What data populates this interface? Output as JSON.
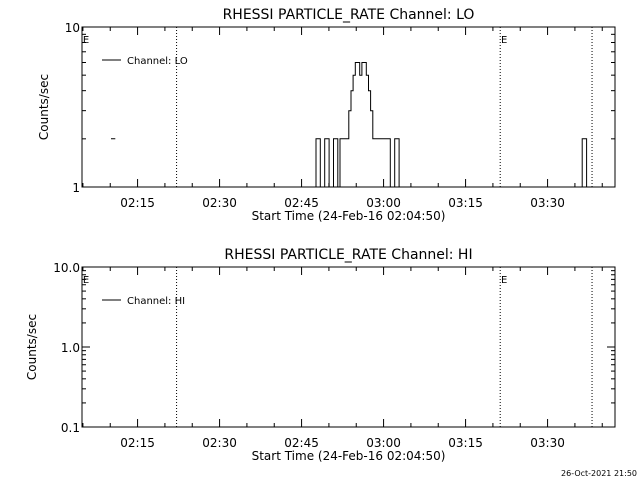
{
  "chart_data": [
    {
      "type": "line",
      "title": "RHESSI PARTICLE_RATE Channel: LO",
      "xlabel": "Start Time (24-Feb-16 02:04:50)",
      "ylabel": "Counts/sec",
      "yscale": "log",
      "ylim": [
        1,
        10
      ],
      "xlim_minutes_after_start": [
        0,
        97.5
      ],
      "x_tick_labels": [
        "02:15",
        "02:30",
        "02:45",
        "03:00",
        "03:15",
        "03:30"
      ],
      "y_tick_labels": [
        "1",
        "10"
      ],
      "legend": {
        "entries": [
          "Channel: LO"
        ],
        "placement": "top-left"
      },
      "eclipse_markers": {
        "times_minutes_after_start": [
          17.3,
          76.5,
          93.3
        ],
        "labels": [
          "E",
          "E"
        ]
      },
      "series": [
        {
          "name": "Channel: LO",
          "x": [
            4.6,
            5.0,
            5.3,
            5.7,
            6.0,
            6.4,
            42.0,
            42.4,
            42.8,
            43.2,
            43.6,
            44.0,
            44.4,
            44.8,
            45.2,
            45.6,
            46.0,
            46.4,
            46.8,
            47.2,
            47.6,
            48.0,
            48.4,
            48.8,
            49.2,
            49.6,
            50.0,
            50.4,
            50.8,
            51.2,
            51.6,
            52.0,
            52.4,
            52.8,
            53.2,
            53.6,
            54.0,
            54.4,
            54.8,
            55.2,
            55.6,
            56.0,
            56.4,
            56.8,
            57.2,
            57.6,
            58.0,
            58.4,
            90.7,
            91.1,
            91.5,
            91.9,
            92.3
          ],
          "y": [
            1,
            1,
            2,
            2,
            1,
            1,
            1,
            1,
            2,
            2,
            1,
            1,
            2,
            2,
            1,
            1,
            2,
            2,
            1,
            2,
            2,
            2,
            2,
            3,
            4,
            5,
            6,
            6,
            5,
            6,
            6,
            5,
            4,
            3,
            2,
            2,
            2,
            2,
            2,
            2,
            2,
            2,
            1,
            1,
            2,
            2,
            1,
            1,
            1,
            1,
            2,
            2,
            1
          ]
        }
      ]
    },
    {
      "type": "line",
      "title": "RHESSI PARTICLE_RATE Channel: HI",
      "xlabel": "Start Time (24-Feb-16 02:04:50)",
      "ylabel": "Counts/sec",
      "yscale": "log",
      "ylim": [
        0.1,
        10
      ],
      "xlim_minutes_after_start": [
        0,
        97.5
      ],
      "x_tick_labels": [
        "02:15",
        "02:30",
        "02:45",
        "03:00",
        "03:15",
        "03:30"
      ],
      "y_tick_labels": [
        "0.1",
        "1.0",
        "10.0"
      ],
      "legend": {
        "entries": [
          "Channel: HI"
        ],
        "placement": "top-left"
      },
      "eclipse_markers": {
        "times_minutes_after_start": [
          17.3,
          76.5,
          93.3
        ],
        "labels": [
          "E",
          "E"
        ]
      },
      "series": [
        {
          "name": "Channel: HI",
          "x": [],
          "y": []
        }
      ]
    }
  ],
  "timestamp": "26-Oct-2021 21:50"
}
